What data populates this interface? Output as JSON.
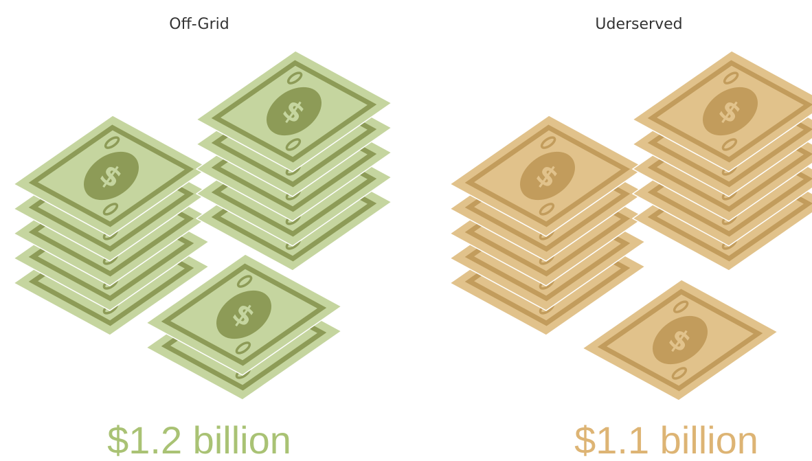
{
  "panels": [
    {
      "label": "Off-Grid",
      "amount": "$1.2 billion",
      "light": "#c5d59f",
      "dark": "#8d9b57",
      "text_color": "#a9c274",
      "stacks": [
        5,
        5,
        2
      ]
    },
    {
      "label": "Uderserved",
      "amount": "$1.1 billion",
      "light": "#e1c28b",
      "dark": "#c29c5c",
      "text_color": "#ddb474",
      "stacks": [
        5,
        5,
        1
      ]
    }
  ]
}
